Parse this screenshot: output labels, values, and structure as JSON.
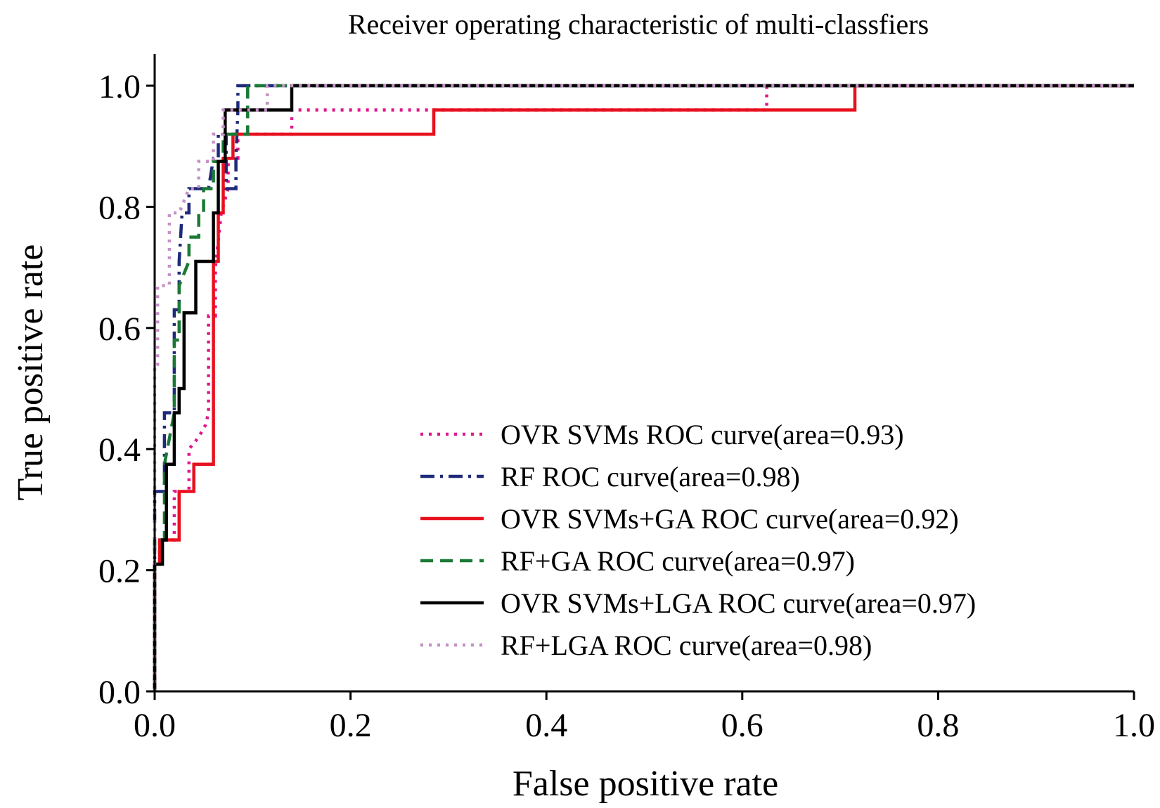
{
  "chart_data": {
    "type": "line",
    "title": "Receiver operating characteristic of multi-classfiers",
    "xlabel": "False positive rate",
    "ylabel": "True positive rate",
    "xlim": [
      0.0,
      1.0
    ],
    "ylim": [
      0.0,
      1.0
    ],
    "x_ticks": [
      "0.0",
      "0.2",
      "0.4",
      "0.6",
      "0.8",
      "1.0"
    ],
    "y_ticks": [
      "0.0",
      "0.2",
      "0.4",
      "0.6",
      "0.8",
      "1.0"
    ],
    "grid": false,
    "legend_position": "lower-right",
    "series": [
      {
        "name": "OVR SVMs ROC curve(area=0.93)",
        "color": "#e0168c",
        "dash": "dotted",
        "points": [
          [
            0,
            0
          ],
          [
            0,
            0.21
          ],
          [
            0.005,
            0.21
          ],
          [
            0.005,
            0.25
          ],
          [
            0.02,
            0.25
          ],
          [
            0.02,
            0.33
          ],
          [
            0.035,
            0.33
          ],
          [
            0.035,
            0.4
          ],
          [
            0.045,
            0.42
          ],
          [
            0.052,
            0.44
          ],
          [
            0.055,
            0.46
          ],
          [
            0.055,
            0.62
          ],
          [
            0.062,
            0.62
          ],
          [
            0.062,
            0.7
          ],
          [
            0.068,
            0.79
          ],
          [
            0.075,
            0.83
          ],
          [
            0.075,
            0.88
          ],
          [
            0.085,
            0.88
          ],
          [
            0.085,
            0.92
          ],
          [
            0.14,
            0.92
          ],
          [
            0.14,
            0.96
          ],
          [
            0.625,
            0.96
          ],
          [
            0.625,
            1.0
          ],
          [
            1.0,
            1.0
          ]
        ]
      },
      {
        "name": "RF ROC curve(area=0.98)",
        "color": "#1f2a7a",
        "dash": "dashdot",
        "points": [
          [
            0,
            0
          ],
          [
            0,
            0.33
          ],
          [
            0.01,
            0.33
          ],
          [
            0.01,
            0.46
          ],
          [
            0.02,
            0.46
          ],
          [
            0.02,
            0.63
          ],
          [
            0.025,
            0.63
          ],
          [
            0.025,
            0.71
          ],
          [
            0.028,
            0.79
          ],
          [
            0.035,
            0.79
          ],
          [
            0.035,
            0.83
          ],
          [
            0.055,
            0.83
          ],
          [
            0.06,
            0.88
          ],
          [
            0.065,
            0.88
          ],
          [
            0.065,
            0.92
          ],
          [
            0.073,
            0.92
          ],
          [
            0.073,
            0.83
          ],
          [
            0.083,
            0.83
          ],
          [
            0.083,
            0.88
          ],
          [
            0.085,
            0.96
          ],
          [
            0.085,
            1.0
          ],
          [
            1.0,
            1.0
          ]
        ]
      },
      {
        "name": "OVR SVMs+GA ROC curve(area=0.92)",
        "color": "#e8101e",
        "dash": "solid",
        "points": [
          [
            0,
            0
          ],
          [
            0,
            0.21
          ],
          [
            0.005,
            0.21
          ],
          [
            0.005,
            0.25
          ],
          [
            0.025,
            0.25
          ],
          [
            0.025,
            0.33
          ],
          [
            0.04,
            0.33
          ],
          [
            0.04,
            0.375
          ],
          [
            0.06,
            0.375
          ],
          [
            0.06,
            0.71
          ],
          [
            0.065,
            0.71
          ],
          [
            0.065,
            0.79
          ],
          [
            0.07,
            0.79
          ],
          [
            0.07,
            0.88
          ],
          [
            0.08,
            0.88
          ],
          [
            0.08,
            0.92
          ],
          [
            0.285,
            0.92
          ],
          [
            0.285,
            0.96
          ],
          [
            0.715,
            0.96
          ],
          [
            0.715,
            1.0
          ],
          [
            1.0,
            1.0
          ]
        ]
      },
      {
        "name": "RF+GA ROC curve(area=0.97)",
        "color": "#1a7a35",
        "dash": "dashed",
        "points": [
          [
            0,
            0
          ],
          [
            0,
            0.25
          ],
          [
            0.01,
            0.25
          ],
          [
            0.01,
            0.375
          ],
          [
            0.02,
            0.46
          ],
          [
            0.02,
            0.58
          ],
          [
            0.025,
            0.58
          ],
          [
            0.025,
            0.67
          ],
          [
            0.035,
            0.71
          ],
          [
            0.035,
            0.75
          ],
          [
            0.045,
            0.75
          ],
          [
            0.045,
            0.79
          ],
          [
            0.05,
            0.79
          ],
          [
            0.05,
            0.83
          ],
          [
            0.06,
            0.83
          ],
          [
            0.06,
            0.875
          ],
          [
            0.07,
            0.875
          ],
          [
            0.07,
            0.92
          ],
          [
            0.095,
            0.92
          ],
          [
            0.095,
            1.0
          ],
          [
            1.0,
            1.0
          ]
        ]
      },
      {
        "name": "OVR SVMs+LGA ROC curve(area=0.97)",
        "color": "#000000",
        "dash": "solid",
        "points": [
          [
            0,
            0
          ],
          [
            0,
            0.21
          ],
          [
            0.008,
            0.21
          ],
          [
            0.008,
            0.25
          ],
          [
            0.012,
            0.25
          ],
          [
            0.012,
            0.375
          ],
          [
            0.02,
            0.375
          ],
          [
            0.02,
            0.46
          ],
          [
            0.025,
            0.46
          ],
          [
            0.025,
            0.5
          ],
          [
            0.03,
            0.5
          ],
          [
            0.03,
            0.625
          ],
          [
            0.042,
            0.625
          ],
          [
            0.042,
            0.71
          ],
          [
            0.06,
            0.71
          ],
          [
            0.06,
            0.79
          ],
          [
            0.065,
            0.79
          ],
          [
            0.065,
            0.875
          ],
          [
            0.072,
            0.875
          ],
          [
            0.072,
            0.96
          ],
          [
            0.14,
            0.96
          ],
          [
            0.14,
            1.0
          ],
          [
            1.0,
            1.0
          ]
        ]
      },
      {
        "name": "RF+LGA ROC curve(area=0.98)",
        "color": "#c58fc6",
        "dash": "dotted",
        "points": [
          [
            0,
            0
          ],
          [
            0,
            0.54
          ],
          [
            0.003,
            0.54
          ],
          [
            0.003,
            0.67
          ],
          [
            0.015,
            0.67
          ],
          [
            0.015,
            0.79
          ],
          [
            0.02,
            0.79
          ],
          [
            0.025,
            0.79
          ],
          [
            0.035,
            0.83
          ],
          [
            0.045,
            0.83
          ],
          [
            0.045,
            0.875
          ],
          [
            0.06,
            0.875
          ],
          [
            0.06,
            0.92
          ],
          [
            0.07,
            0.92
          ],
          [
            0.07,
            0.96
          ],
          [
            0.1,
            0.96
          ],
          [
            0.115,
            0.96
          ],
          [
            0.115,
            1.0
          ],
          [
            1.0,
            1.0
          ]
        ]
      }
    ]
  }
}
